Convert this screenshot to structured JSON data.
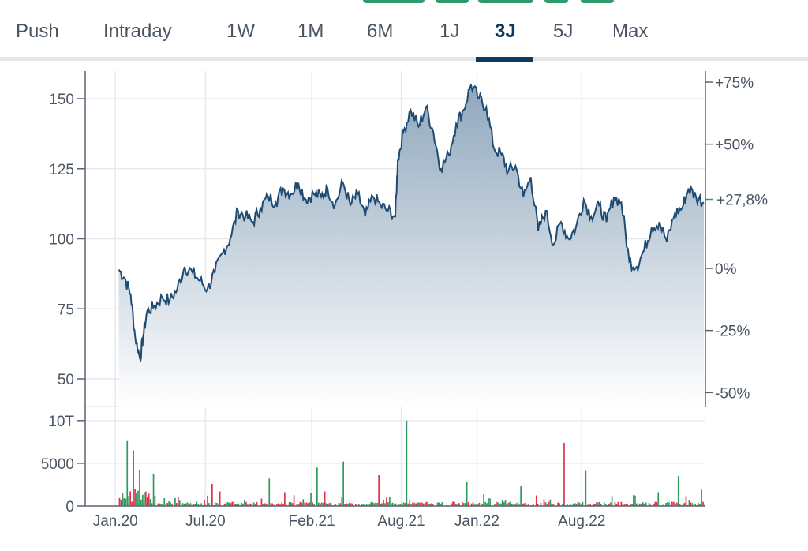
{
  "tabs": [
    {
      "label": "Push",
      "active": false
    },
    {
      "label": "Intraday",
      "active": false
    },
    {
      "label": "1W",
      "active": false
    },
    {
      "label": "1M",
      "active": false
    },
    {
      "label": "6M",
      "active": false
    },
    {
      "label": "1J",
      "active": false
    },
    {
      "label": "3J",
      "active": true
    },
    {
      "label": "5J",
      "active": false
    },
    {
      "label": "Max",
      "active": false
    }
  ],
  "colors": {
    "line": "#1f4b73",
    "fill_top": "#8fa7bd",
    "fill_bottom": "#ffffff",
    "up_volume": "#2e9a5e",
    "down_volume": "#e0304a",
    "current_change": "#2e9a5e",
    "tab_active": "#0e3a5f"
  },
  "chart_data": [
    {
      "type": "area",
      "x_tick_labels": [
        "Jan.20",
        "Jul.20",
        "Feb.21",
        "Aug.21",
        "Jan.22",
        "Aug.22"
      ],
      "y_left_ticks": [
        150,
        125,
        100,
        75,
        50
      ],
      "y_left_tick_labels": [
        "150",
        "125",
        "100",
        "75",
        "50"
      ],
      "y_right_ticks": [
        75,
        50,
        0,
        -25,
        -50
      ],
      "y_right_tick_labels": [
        "+75%",
        "+50%",
        "0%",
        "-25%",
        "-50%"
      ],
      "current_change_label": "+27,8%",
      "current_change_value": 27.8,
      "ylim": [
        40,
        160
      ],
      "grid": true,
      "series": [
        {
          "x": [
            "2020-01-08",
            "2020-01-20",
            "2020-02-01",
            "2020-02-10",
            "2020-02-20",
            "2020-02-26",
            "2020-03-05",
            "2020-03-20",
            "2020-04-05",
            "2020-04-20",
            "2020-05-05",
            "2020-05-20",
            "2020-06-05",
            "2020-06-20",
            "2020-07-05",
            "2020-07-20",
            "2020-08-05",
            "2020-08-20",
            "2020-09-05",
            "2020-09-20",
            "2020-10-05",
            "2020-10-20",
            "2020-11-05",
            "2020-11-20",
            "2020-12-05",
            "2020-12-20",
            "2021-01-05",
            "2021-01-20",
            "2021-02-05",
            "2021-02-20",
            "2021-03-05",
            "2021-03-20",
            "2021-04-05",
            "2021-04-20",
            "2021-05-05",
            "2021-05-20",
            "2021-06-05",
            "2021-06-20",
            "2021-07-05",
            "2021-07-20",
            "2021-07-25",
            "2021-08-05",
            "2021-08-20",
            "2021-09-05",
            "2021-09-20",
            "2021-10-05",
            "2021-10-20",
            "2021-11-05",
            "2021-11-20",
            "2021-12-05",
            "2021-12-20",
            "2022-01-05",
            "2022-01-20",
            "2022-02-05",
            "2022-02-20",
            "2022-03-05",
            "2022-03-20",
            "2022-04-05",
            "2022-04-20",
            "2022-05-05",
            "2022-05-20",
            "2022-06-05",
            "2022-06-20",
            "2022-07-05",
            "2022-07-20",
            "2022-08-05",
            "2022-08-20",
            "2022-09-05",
            "2022-09-20",
            "2022-10-05",
            "2022-10-20",
            "2022-11-05",
            "2022-11-20",
            "2022-12-05",
            "2022-12-20",
            "2023-01-05",
            "2023-01-20",
            "2023-02-05",
            "2023-02-20",
            "2023-03-05",
            "2023-03-20",
            "2023-04-05"
          ],
          "values": [
            89,
            86,
            80,
            65,
            57,
            65,
            74,
            76,
            79,
            78,
            82,
            90,
            88,
            85,
            82,
            88,
            95,
            100,
            110,
            108,
            106,
            111,
            115,
            113,
            118,
            116,
            120,
            114,
            116,
            115,
            118,
            112,
            120,
            112,
            116,
            108,
            115,
            112,
            110,
            108,
            128,
            138,
            146,
            140,
            147,
            138,
            125,
            130,
            141,
            146,
            155,
            150,
            147,
            132,
            130,
            124,
            126,
            115,
            122,
            103,
            110,
            98,
            106,
            100,
            104,
            114,
            108,
            112,
            106,
            115,
            113,
            92,
            90,
            96,
            104,
            106,
            99,
            109,
            111,
            118,
            115,
            113
          ]
        }
      ]
    },
    {
      "type": "bar",
      "y_ticks": [
        0,
        5000,
        10000
      ],
      "y_tick_labels": [
        "0",
        "5000",
        "10T"
      ],
      "ylim": [
        0,
        11000
      ],
      "grid": true
    }
  ]
}
